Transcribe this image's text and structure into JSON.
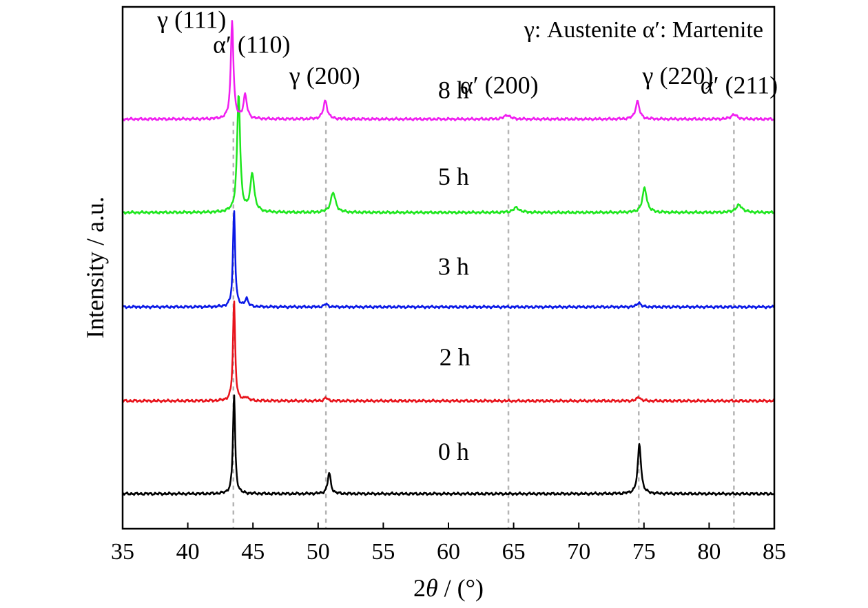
{
  "chart_data": {
    "type": "line",
    "xlabel_parts": [
      "2",
      "θ",
      " / (°)"
    ],
    "ylabel": "Intensity / a.u.",
    "xlim": [
      35,
      85
    ],
    "ylim": [
      0,
      1000
    ],
    "xticks": [
      35,
      40,
      45,
      50,
      55,
      60,
      65,
      70,
      75,
      80,
      85
    ],
    "legend_note": "γ: Austenite  α′: Martenite",
    "reference_lines_x": [
      43.5,
      50.6,
      64.6,
      74.6,
      81.9
    ],
    "peak_labels": [
      {
        "text": "γ (111)",
        "x": 40.3,
        "y": 960
      },
      {
        "text": "α′ (110)",
        "x": 44.9,
        "y": 912
      },
      {
        "text": "γ (200)",
        "x": 50.5,
        "y": 852
      },
      {
        "text": "α′ (200)",
        "x": 63.9,
        "y": 834
      },
      {
        "text": "γ (220)",
        "x": 77.6,
        "y": 852
      },
      {
        "text": "α′ (211)",
        "x": 82.3,
        "y": 834
      }
    ],
    "series": [
      {
        "name": "0 h",
        "color": "#000000",
        "baseline": 67,
        "label_pos": {
          "x": 59.2,
          "y": 132
        },
        "peaks": [
          {
            "x": 43.55,
            "h": 191,
            "w": 0.1
          },
          {
            "x": 50.85,
            "h": 40,
            "w": 0.14
          },
          {
            "x": 74.65,
            "h": 95,
            "w": 0.15
          }
        ]
      },
      {
        "name": "2 h",
        "color": "#e8131b",
        "baseline": 245,
        "label_pos": {
          "x": 59.3,
          "y": 313
        },
        "peaks": [
          {
            "x": 43.55,
            "h": 191,
            "w": 0.1
          },
          {
            "x": 44.5,
            "h": 7,
            "w": 0.15
          },
          {
            "x": 50.6,
            "h": 6,
            "w": 0.15
          },
          {
            "x": 74.6,
            "h": 8,
            "w": 0.15
          }
        ]
      },
      {
        "name": "3 h",
        "color": "#0a19e6",
        "baseline": 425,
        "label_pos": {
          "x": 59.2,
          "y": 487
        },
        "peaks": [
          {
            "x": 43.55,
            "h": 186,
            "w": 0.1
          },
          {
            "x": 44.5,
            "h": 16,
            "w": 0.14
          },
          {
            "x": 50.6,
            "h": 6,
            "w": 0.15
          },
          {
            "x": 74.6,
            "h": 9,
            "w": 0.15
          }
        ]
      },
      {
        "name": "5 h",
        "color": "#1ee61e",
        "baseline": 606,
        "label_pos": {
          "x": 59.2,
          "y": 659
        },
        "peaks": [
          {
            "x": 43.9,
            "h": 226,
            "w": 0.14
          },
          {
            "x": 44.95,
            "h": 73,
            "w": 0.18
          },
          {
            "x": 51.15,
            "h": 38,
            "w": 0.22
          },
          {
            "x": 65.2,
            "h": 9,
            "w": 0.3
          },
          {
            "x": 75.05,
            "h": 47,
            "w": 0.2
          },
          {
            "x": 82.3,
            "h": 14,
            "w": 0.3
          }
        ]
      },
      {
        "name": "8 h",
        "color": "#f01ef0",
        "baseline": 785,
        "label_pos": {
          "x": 59.2,
          "y": 825
        },
        "peaks": [
          {
            "x": 43.4,
            "h": 189,
            "w": 0.12
          },
          {
            "x": 44.4,
            "h": 45,
            "w": 0.16
          },
          {
            "x": 50.55,
            "h": 35,
            "w": 0.18
          },
          {
            "x": 64.5,
            "h": 8,
            "w": 0.25
          },
          {
            "x": 74.5,
            "h": 34,
            "w": 0.18
          },
          {
            "x": 81.9,
            "h": 9,
            "w": 0.25
          }
        ]
      }
    ]
  }
}
